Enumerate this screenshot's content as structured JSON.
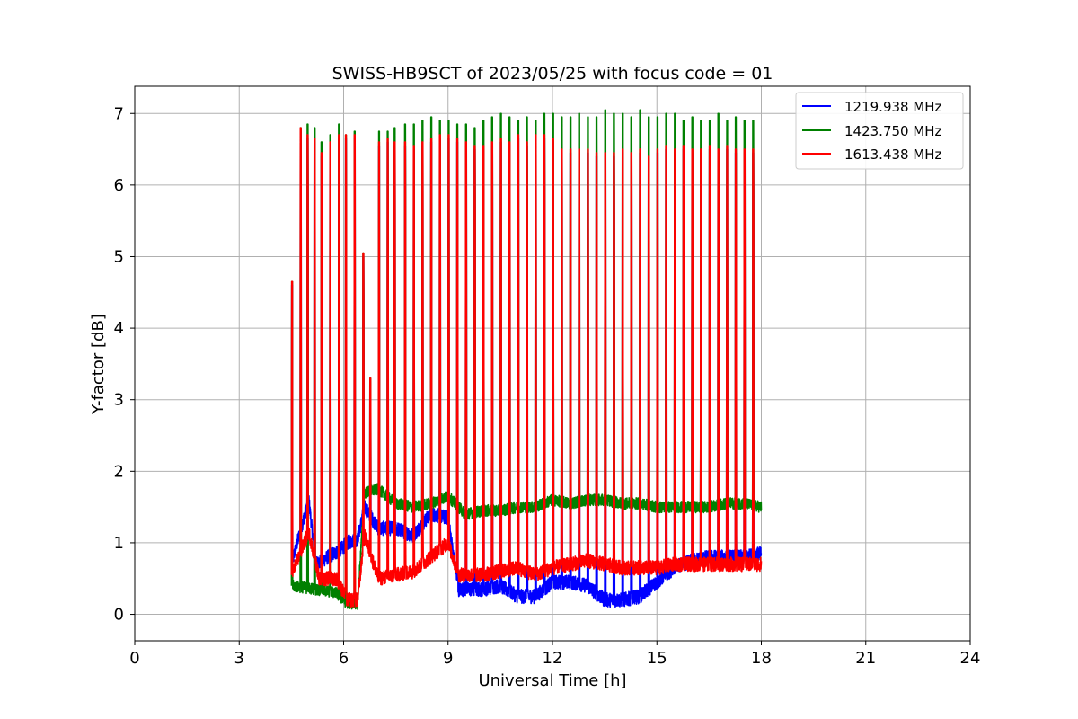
{
  "chart_data": {
    "type": "line",
    "title": "SWISS-HB9SCT of 2023/05/25 with focus code = 01",
    "xlabel": "Universal Time [h]",
    "ylabel": "Y-factor [dB]",
    "xlim": [
      0,
      24
    ],
    "ylim": [
      -0.37,
      7.38
    ],
    "xticks": [
      0,
      3,
      6,
      9,
      12,
      15,
      18,
      21,
      24
    ],
    "xtick_labels": [
      "0",
      "3",
      "6",
      "9",
      "12",
      "15",
      "18",
      "21",
      "24"
    ],
    "yticks": [
      0,
      1,
      2,
      3,
      4,
      5,
      6,
      7
    ],
    "ytick_labels": [
      "0",
      "1",
      "2",
      "3",
      "4",
      "5",
      "6",
      "7"
    ],
    "grid": true,
    "legend_position": "top-right",
    "data_range_hours": [
      4.5,
      18.0
    ],
    "calibration_spikes": {
      "times": [
        4.5,
        4.75,
        4.95,
        5.15,
        5.35,
        5.6,
        5.85,
        6.05,
        6.3,
        6.55,
        6.75,
        7.0,
        7.25,
        7.45,
        7.75,
        8.0,
        8.25,
        8.5,
        8.75,
        9.0,
        9.25,
        9.5,
        9.75,
        10.0,
        10.25,
        10.5,
        10.75,
        11.0,
        11.25,
        11.5,
        11.75,
        12.0,
        12.25,
        12.5,
        12.75,
        13.0,
        13.25,
        13.5,
        13.75,
        14.0,
        14.25,
        14.5,
        14.75,
        15.0,
        15.25,
        15.5,
        15.75,
        16.0,
        16.25,
        16.5,
        16.75,
        17.0,
        17.25,
        17.5,
        17.75
      ],
      "peak_1423": [
        4.65,
        6.8,
        6.85,
        6.8,
        6.6,
        6.7,
        6.85,
        6.7,
        6.75,
        5.05,
        3.3,
        6.75,
        6.75,
        6.8,
        6.85,
        6.85,
        6.9,
        6.95,
        6.9,
        6.9,
        6.85,
        6.85,
        6.8,
        6.9,
        6.95,
        7.0,
        6.95,
        6.9,
        6.95,
        6.9,
        7.0,
        7.0,
        6.95,
        6.95,
        7.0,
        6.95,
        6.95,
        7.05,
        7.0,
        7.0,
        6.95,
        7.05,
        6.95,
        6.95,
        7.0,
        7.0,
        6.9,
        6.95,
        6.9,
        6.9,
        7.0,
        6.9,
        6.95,
        6.9,
        6.9
      ],
      "peak_1613": [
        4.65,
        6.8,
        6.7,
        6.65,
        6.45,
        6.6,
        6.7,
        6.7,
        6.7,
        5.05,
        3.3,
        6.6,
        6.65,
        6.6,
        6.6,
        6.55,
        6.6,
        6.65,
        6.7,
        6.7,
        6.65,
        6.6,
        6.55,
        6.55,
        6.6,
        6.65,
        6.6,
        6.7,
        6.6,
        6.7,
        6.7,
        6.65,
        6.5,
        6.5,
        6.5,
        6.5,
        6.45,
        6.45,
        6.45,
        6.5,
        6.45,
        6.5,
        6.4,
        6.5,
        6.55,
        6.5,
        6.55,
        6.5,
        6.5,
        6.55,
        6.5,
        6.55,
        6.5,
        6.5,
        6.5
      ]
    },
    "series": [
      {
        "name": "1219.938 MHz",
        "color": "#0000ff",
        "noise": 0.1,
        "baseline": [
          [
            4.5,
            0.7
          ],
          [
            5.0,
            1.6
          ],
          [
            5.2,
            0.7
          ],
          [
            5.9,
            0.9
          ],
          [
            6.1,
            1.0
          ],
          [
            6.4,
            1.05
          ],
          [
            6.6,
            1.5
          ],
          [
            7.0,
            1.2
          ],
          [
            7.5,
            1.2
          ],
          [
            8.0,
            1.1
          ],
          [
            8.5,
            1.4
          ],
          [
            9.0,
            1.35
          ],
          [
            9.3,
            0.35
          ],
          [
            10.0,
            0.35
          ],
          [
            10.5,
            0.4
          ],
          [
            11.0,
            0.25
          ],
          [
            11.5,
            0.25
          ],
          [
            12.0,
            0.45
          ],
          [
            12.5,
            0.45
          ],
          [
            13.0,
            0.4
          ],
          [
            13.5,
            0.2
          ],
          [
            14.0,
            0.2
          ],
          [
            14.5,
            0.25
          ],
          [
            15.0,
            0.45
          ],
          [
            15.5,
            0.65
          ],
          [
            16.0,
            0.75
          ],
          [
            16.5,
            0.8
          ],
          [
            17.0,
            0.8
          ],
          [
            17.5,
            0.8
          ],
          [
            18.0,
            0.85
          ]
        ]
      },
      {
        "name": "1423.750 MHz",
        "color": "#008000",
        "noise": 0.08,
        "baseline": [
          [
            4.5,
            0.4
          ],
          [
            5.2,
            0.35
          ],
          [
            5.8,
            0.3
          ],
          [
            6.1,
            0.15
          ],
          [
            6.4,
            0.15
          ],
          [
            6.6,
            1.7
          ],
          [
            7.0,
            1.75
          ],
          [
            7.5,
            1.55
          ],
          [
            8.0,
            1.5
          ],
          [
            8.5,
            1.55
          ],
          [
            9.0,
            1.65
          ],
          [
            9.5,
            1.4
          ],
          [
            10.0,
            1.45
          ],
          [
            10.5,
            1.45
          ],
          [
            11.0,
            1.5
          ],
          [
            11.5,
            1.5
          ],
          [
            12.0,
            1.6
          ],
          [
            12.5,
            1.55
          ],
          [
            13.0,
            1.6
          ],
          [
            13.5,
            1.6
          ],
          [
            14.0,
            1.55
          ],
          [
            14.5,
            1.55
          ],
          [
            15.0,
            1.5
          ],
          [
            15.5,
            1.5
          ],
          [
            16.0,
            1.5
          ],
          [
            16.5,
            1.5
          ],
          [
            17.0,
            1.55
          ],
          [
            17.5,
            1.55
          ],
          [
            18.0,
            1.5
          ]
        ]
      },
      {
        "name": "1613.438 MHz",
        "color": "#ff0000",
        "noise": 0.1,
        "baseline": [
          [
            4.5,
            0.55
          ],
          [
            5.0,
            1.15
          ],
          [
            5.3,
            0.5
          ],
          [
            5.8,
            0.5
          ],
          [
            6.1,
            0.2
          ],
          [
            6.4,
            0.2
          ],
          [
            6.6,
            1.1
          ],
          [
            7.0,
            0.5
          ],
          [
            7.5,
            0.55
          ],
          [
            8.0,
            0.6
          ],
          [
            8.5,
            0.8
          ],
          [
            9.0,
            1.0
          ],
          [
            9.3,
            0.55
          ],
          [
            10.0,
            0.55
          ],
          [
            10.5,
            0.6
          ],
          [
            11.0,
            0.65
          ],
          [
            11.5,
            0.55
          ],
          [
            12.0,
            0.65
          ],
          [
            12.5,
            0.7
          ],
          [
            13.0,
            0.75
          ],
          [
            13.5,
            0.7
          ],
          [
            14.0,
            0.65
          ],
          [
            14.5,
            0.65
          ],
          [
            15.0,
            0.65
          ],
          [
            15.5,
            0.7
          ],
          [
            16.0,
            0.7
          ],
          [
            16.5,
            0.7
          ],
          [
            17.0,
            0.7
          ],
          [
            17.5,
            0.7
          ],
          [
            18.0,
            0.7
          ]
        ]
      }
    ]
  }
}
